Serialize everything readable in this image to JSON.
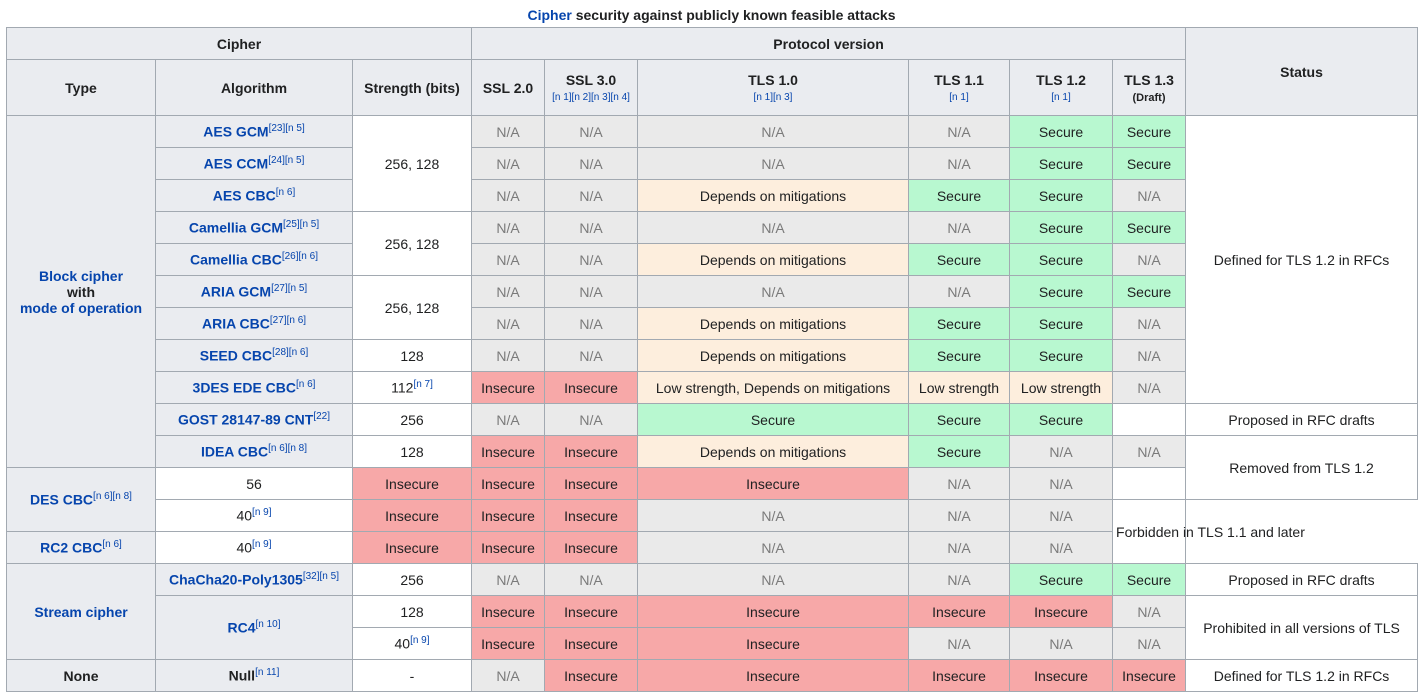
{
  "caption": {
    "link": "Cipher",
    "text": " security against publicly known feasible attacks"
  },
  "header": {
    "cipher": "Cipher",
    "protocol": "Protocol version",
    "status": "Status",
    "type": "Type",
    "algorithm": "Algorithm",
    "strength": "Strength (bits)",
    "ssl20": "SSL 2.0",
    "ssl30": "SSL 3.0",
    "ssl30_refs": "[n 1][n 2][n 3][n 4]",
    "tls10": "TLS 1.0",
    "tls10_refs": "[n 1][n 3]",
    "tls11": "TLS 1.1",
    "tls11_refs": "[n 1]",
    "tls12": "TLS 1.2",
    "tls12_refs": "[n 1]",
    "tls13": "TLS 1.3",
    "tls13_note": "(Draft)"
  },
  "types": {
    "block_1": "Block cipher",
    "block_2": "with",
    "block_3": "mode of operation",
    "stream": "Stream cipher",
    "none": "None"
  },
  "values": {
    "na": "N/A",
    "secure": "Secure",
    "insecure": "Insecure",
    "depends": "Depends on mitigations",
    "low": "Low strength",
    "low_depends": "Low strength, Depends on mitigations"
  },
  "rows": [
    {
      "name": "AES GCM",
      "ref": "[23][n 5]",
      "strength": "256, 128"
    },
    {
      "name": "AES CCM",
      "ref": "[24][n 5]"
    },
    {
      "name": "AES CBC",
      "ref": "[n 6]"
    },
    {
      "name": "Camellia GCM",
      "ref": "[25][n 5]",
      "strength": "256, 128"
    },
    {
      "name": "Camellia CBC",
      "ref": "[26][n 6]"
    },
    {
      "name": "ARIA GCM",
      "ref": "[27][n 5]",
      "strength": "256, 128"
    },
    {
      "name": "ARIA CBC",
      "ref": "[27][n 6]"
    },
    {
      "name": "SEED CBC",
      "ref": "[28][n 6]",
      "strength": "128"
    },
    {
      "name": "3DES EDE CBC",
      "ref": "[n 6]",
      "strength": "112",
      "strength_ref": "[n 7]"
    },
    {
      "name": "GOST 28147-89 CNT",
      "ref": "[22]",
      "strength": "256"
    },
    {
      "name": "IDEA CBC",
      "ref": "[n 6][n 8]",
      "strength": "128"
    },
    {
      "name": "DES CBC",
      "ref": "[n 6][n 8]",
      "strength": "56"
    },
    {
      "strength": "40",
      "strength_ref": "[n 9]"
    },
    {
      "name": "RC2 CBC",
      "ref": "[n 6]",
      "strength": "40",
      "strength_ref": "[n 9]"
    },
    {
      "name": "ChaCha20-Poly1305",
      "ref": "[32][n 5]",
      "strength": "256"
    },
    {
      "name": "RC4",
      "ref": "[n 10]",
      "strength": "128"
    },
    {
      "strength": "40",
      "strength_ref": "[n 9]"
    },
    {
      "name": "Null",
      "ref": "[n 11]",
      "strength": "-"
    }
  ],
  "status": {
    "s1": "Defined for TLS 1.2 in RFCs",
    "s2": "Proposed in RFC drafts",
    "s3": "Removed from TLS 1.2",
    "s4": "Forbidden in TLS 1.1 and later",
    "s5": "Proposed in RFC drafts",
    "s6": "Prohibited in all versions of TLS",
    "s7": "Defined for TLS 1.2 in RFCs"
  }
}
